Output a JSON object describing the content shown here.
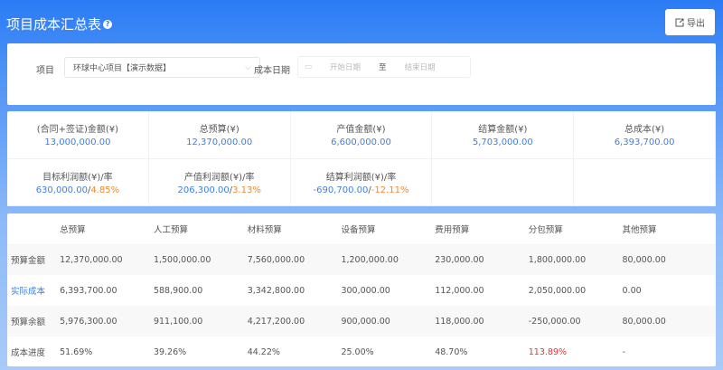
{
  "header": {
    "title": "项目成本汇总表",
    "help_icon": "question-circle-icon",
    "export_label": "导出",
    "export_icon": "export-icon"
  },
  "filter": {
    "project_label": "项目",
    "project_value": "环球中心项目【演示数据】",
    "date_label": "成本日期",
    "start_placeholder": "开始日期",
    "to": "至",
    "end_placeholder": "结束日期"
  },
  "stats": [
    {
      "label": "(合同+签证)金额(¥)",
      "value": "13,000,000.00"
    },
    {
      "label": "总预算(¥)",
      "value": "12,370,000.00"
    },
    {
      "label": "产值金额(¥)",
      "value": "6,600,000.00"
    },
    {
      "label": "结算金额(¥)",
      "value": "5,703,000.00"
    },
    {
      "label": "总成本(¥)",
      "value": "6,393,700.00"
    },
    {
      "label": "目标利润额(¥)/率",
      "value": "630,000.00",
      "rate": "4.85%"
    },
    {
      "label": "产值利润额(¥)/率",
      "value": "206,300.00",
      "rate": "3.13%"
    },
    {
      "label": "结算利润额(¥)/率",
      "value": "-690,700.00",
      "rate": "-12.11%"
    }
  ],
  "table": {
    "headers": [
      "总预算",
      "人工预算",
      "材料预算",
      "设备预算",
      "费用预算",
      "分包预算",
      "其他预算"
    ],
    "rows": [
      {
        "label": "预算金额",
        "cells": [
          "12,370,000.00",
          "1,500,000.00",
          "7,560,000.00",
          "1,200,000.00",
          "230,000.00",
          "1,800,000.00",
          "80,000.00"
        ]
      },
      {
        "label": "实际成本",
        "cells": [
          "6,393,700.00",
          "588,900.00",
          "3,342,800.00",
          "300,000.00",
          "112,000.00",
          "2,050,000.00",
          "0.00"
        ]
      },
      {
        "label": "预算余额",
        "cells": [
          "5,976,300.00",
          "911,100.00",
          "4,217,200.00",
          "900,000.00",
          "118,000.00",
          "-250,000.00",
          "80,000.00"
        ]
      },
      {
        "label": "成本进度",
        "cells": [
          "51.69%",
          "39.26%",
          "44.22%",
          "25.00%",
          "48.70%",
          "113.89%",
          "-"
        ]
      }
    ]
  },
  "colors": {
    "accent": "#3f7ee8",
    "warning": "#f08a2c",
    "danger": "#e8332d"
  }
}
